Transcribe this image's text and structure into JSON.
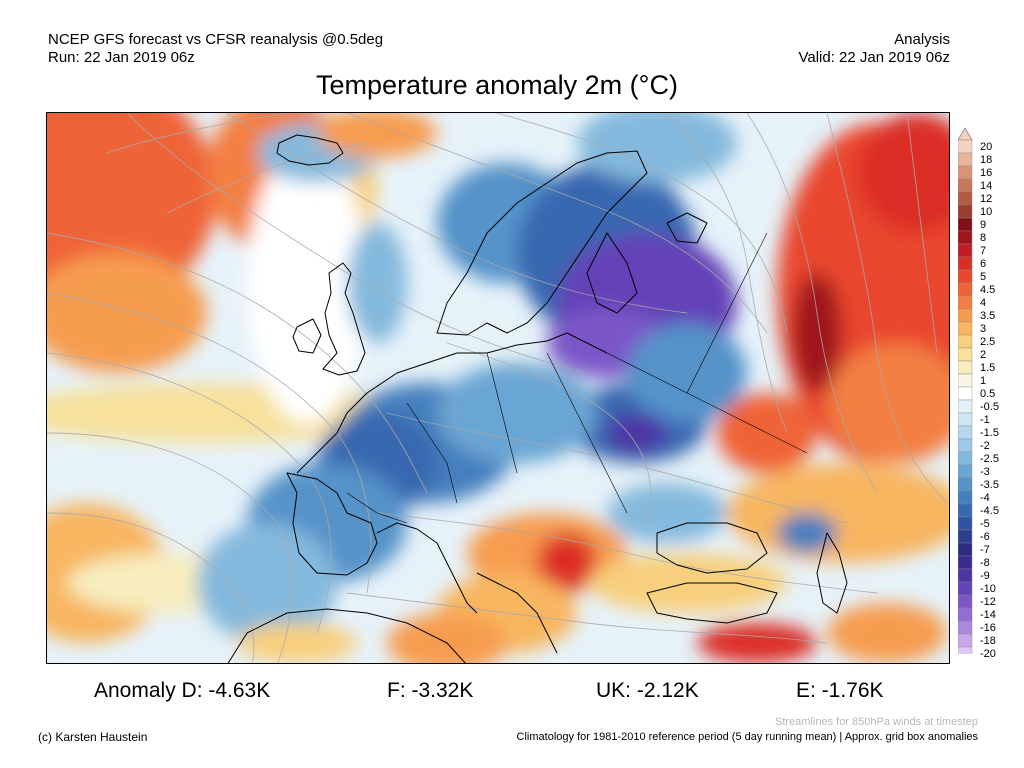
{
  "header": {
    "left_line1": "NCEP GFS forecast vs CFSR reanalysis @0.5deg",
    "left_line2": "Run: 22 Jan 2019 06z",
    "right_line1": "Analysis",
    "right_line2": "Valid: 22 Jan 2019 06z"
  },
  "title": "Temperature anomaly 2m (°C)",
  "colorbar": {
    "labels": [
      "20",
      "18",
      "16",
      "14",
      "12",
      "10",
      "9",
      "8",
      "7",
      "6",
      "5",
      "4.5",
      "4",
      "3.5",
      "3",
      "2.5",
      "2",
      "1.5",
      "1",
      "0.5",
      "-0.5",
      "-1",
      "-1.5",
      "-2",
      "-2.5",
      "-3",
      "-3.5",
      "-4",
      "-4.5",
      "-5",
      "-6",
      "-7",
      "-8",
      "-9",
      "-10",
      "-12",
      "-14",
      "-16",
      "-18",
      "-20"
    ],
    "colors": [
      "#f4d2c2",
      "#e8b49a",
      "#d99477",
      "#c8775a",
      "#b35a43",
      "#9a3d30",
      "#820f18",
      "#a0141c",
      "#c31c22",
      "#dc2d27",
      "#e9472e",
      "#ef6437",
      "#f37f42",
      "#f69c50",
      "#f8b661",
      "#f8cf7c",
      "#f7e19b",
      "#f7edbd",
      "#fbf6e3",
      "#ffffff",
      "#e3f1f9",
      "#cde6f4",
      "#b6d9ee",
      "#9dcae6",
      "#84b9dd",
      "#6aa6d3",
      "#5593c9",
      "#447fbe",
      "#3768b0",
      "#2e53a0",
      "#2b3f90",
      "#2b2c82",
      "#3a2c93",
      "#4d35a6",
      "#6343b8",
      "#7b57c8",
      "#926dd5",
      "#ab88e0",
      "#c6a8ea",
      "#ddc9f3"
    ]
  },
  "map": {
    "streamline_color": "#a9a9a9"
  },
  "anomalies": {
    "d": "Anomaly D: -4.63K",
    "f": "F: -3.32K",
    "uk": "UK: -2.12K",
    "e": "E: -1.76K"
  },
  "footer": {
    "credit": "(c) Karsten Haustein",
    "streamline_note": "Streamlines for 850hPa winds at timestep",
    "climatology_note": "Climatology for 1981-2010 reference period (5 day running mean) | Approx. grid box anomalies"
  }
}
